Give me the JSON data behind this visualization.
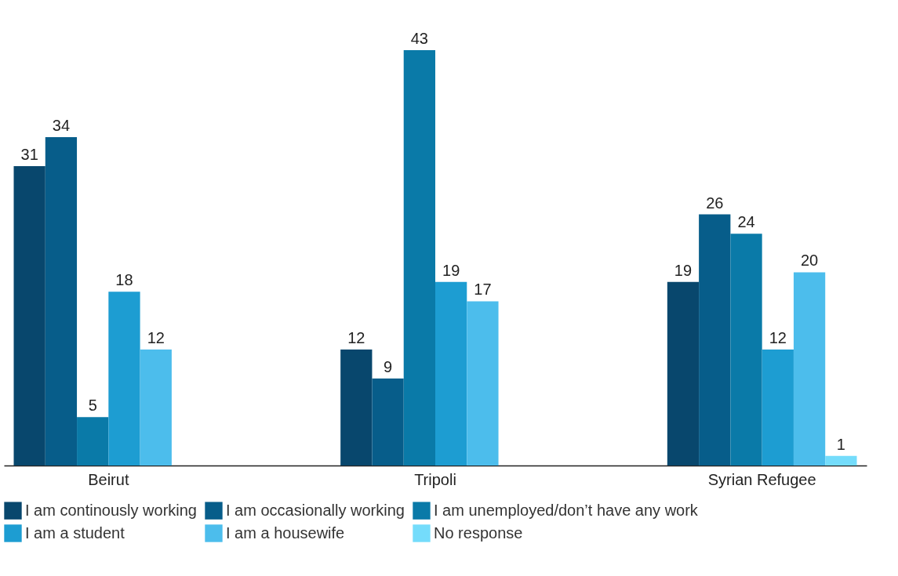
{
  "chart_data": {
    "type": "bar",
    "categories": [
      "Beirut",
      "Tripoli",
      "Syrian Refugee"
    ],
    "series": [
      {
        "name": "I am continously working",
        "color": "#08476d",
        "values": [
          31,
          12,
          19
        ]
      },
      {
        "name": "I am occasionally working",
        "color": "#075d8a",
        "values": [
          34,
          9,
          26
        ]
      },
      {
        "name": "I am unemployed/don’t have any work",
        "color": "#0a7aa8",
        "values": [
          5,
          43,
          24
        ]
      },
      {
        "name": "I am a student",
        "color": "#1d9dd2",
        "values": [
          18,
          19,
          12
        ]
      },
      {
        "name": "I am a housewife",
        "color": "#4cbdec",
        "values": [
          12,
          17,
          20
        ]
      },
      {
        "name": "No response",
        "color": "#74dcfb",
        "values": [
          null,
          null,
          1
        ]
      }
    ],
    "data_labels": true,
    "grid": false,
    "legend": "bottom"
  }
}
